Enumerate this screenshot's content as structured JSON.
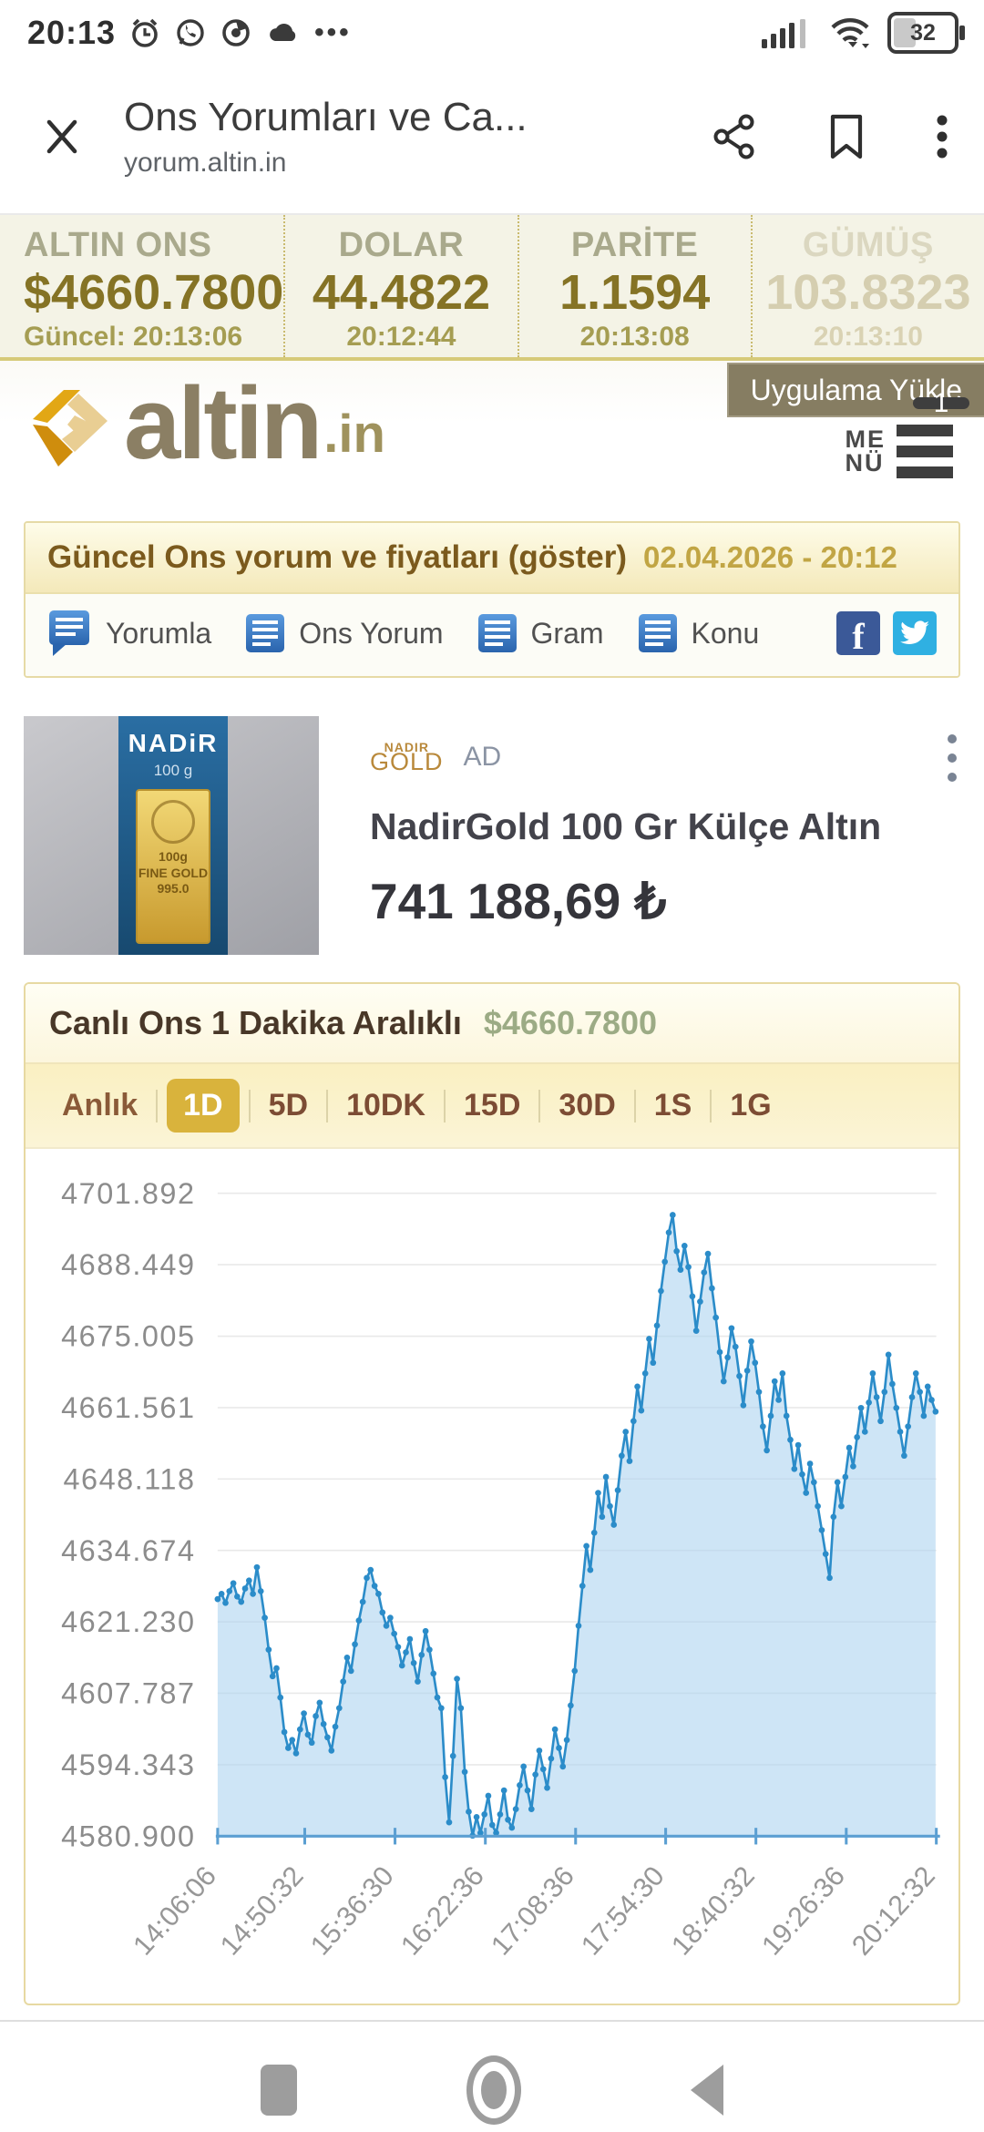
{
  "colors": {
    "accent_gold": "#d9b33c",
    "ticker_value": "#857325",
    "badge_red": "#e0706b",
    "facebook": "#3b5998",
    "twitter": "#2fb0e2",
    "line_blue": "#2b8cc9"
  },
  "status_bar": {
    "time": "20:13",
    "battery": "32"
  },
  "browser": {
    "title": "Ons Yorumları ve Ca...",
    "url": "yorum.altin.in"
  },
  "ticker": {
    "items": [
      {
        "label": "ALTIN ONS",
        "value": "$4660.7800",
        "time": "Güncel: 20:13:06"
      },
      {
        "label": "DOLAR",
        "value": "44.4822",
        "time": "20:12:44"
      },
      {
        "label": "PARİTE",
        "value": "1.1594",
        "time": "20:13:08"
      },
      {
        "label": "GÜMÜŞ",
        "value": "103.8323",
        "time": "20:13:10"
      }
    ]
  },
  "header": {
    "logo_text": "altin",
    "logo_suffix": ".in",
    "install_button": "Uygulama Yükle",
    "menu_line1": "ME",
    "menu_line2": "NÜ",
    "badge": "1"
  },
  "banner": {
    "title": "Güncel Ons yorum ve fiyatları (göster)",
    "date": "02.04.2026 - 20:12",
    "tabs": [
      {
        "label": "Yorumla"
      },
      {
        "label": "Ons Yorum"
      },
      {
        "label": "Gram"
      },
      {
        "label": "Konu"
      }
    ],
    "facebook_letter": "f"
  },
  "ad": {
    "sponsor_top": "NADIR",
    "sponsor_bottom": "GOLD",
    "ad_label": "AD",
    "title": "NadirGold 100 Gr Külçe Altın",
    "price": "741 188,69 ₺",
    "image": {
      "brand": "NADiR",
      "weight": "100 g",
      "bar_line1": "100g",
      "bar_line2": "FINE GOLD",
      "bar_line3": "995.0"
    }
  },
  "chart": {
    "title": "Canlı Ons 1 Dakika Aralıklı",
    "price": "$4660.7800",
    "ranges": [
      "Anlık",
      "1D",
      "5D",
      "10DK",
      "15D",
      "30D",
      "1S",
      "1G"
    ],
    "active_range": "1D"
  },
  "chart_data": {
    "type": "line",
    "area": true,
    "title": "Canlı Ons 1 Dakika Aralıklı",
    "current_value": "$4660.7800",
    "ylim": [
      4580.9,
      4701.892
    ],
    "y_ticks": [
      4701.892,
      4688.449,
      4675.005,
      4661.561,
      4648.118,
      4634.674,
      4621.23,
      4607.787,
      4594.343,
      4580.9
    ],
    "x_tick_labels": [
      "14:06:06",
      "14:50:32",
      "15:36:30",
      "16:22:36",
      "17:08:36",
      "17:54:30",
      "18:40:32",
      "19:26:36",
      "20:12:32"
    ],
    "x_tick_minutes": [
      0,
      44.4,
      90.4,
      136.5,
      182.5,
      228.4,
      274.4,
      320.5,
      366.4
    ],
    "x_total_minutes": 366.4,
    "step_minutes": 2,
    "grid": true,
    "legend": false,
    "line_color": "#2b8cc9",
    "fill_color": "rgba(173,211,240,0.6)",
    "axis_color": "#5b9fd2",
    "grid_color": "#e9e9e9",
    "label_color": "#8c8c8c",
    "values": [
      4625.5,
      4626.5,
      4624.8,
      4627.0,
      4628.5,
      4626.0,
      4625.0,
      4627.5,
      4629.0,
      4626.5,
      4631.5,
      4627.0,
      4622.0,
      4616.0,
      4611.0,
      4612.5,
      4607.0,
      4600.5,
      4597.5,
      4599.0,
      4596.5,
      4601.0,
      4604.0,
      4600.0,
      4598.5,
      4603.5,
      4606.0,
      4602.0,
      4599.5,
      4597.0,
      4601.5,
      4605.0,
      4610.0,
      4614.5,
      4612.0,
      4617.0,
      4621.5,
      4625.0,
      4629.5,
      4631.0,
      4628.0,
      4626.5,
      4623.0,
      4620.5,
      4622.0,
      4619.0,
      4616.5,
      4613.0,
      4615.5,
      4618.0,
      4613.5,
      4610.0,
      4615.0,
      4619.5,
      4616.0,
      4611.5,
      4607.0,
      4605.0,
      4592.0,
      4583.5,
      4596.0,
      4610.5,
      4605.0,
      4593.0,
      4585.5,
      4581.0,
      4584.5,
      4581.5,
      4585.0,
      4588.5,
      4583.0,
      4581.5,
      4585.0,
      4589.5,
      4584.0,
      4582.5,
      4586.0,
      4590.5,
      4594.0,
      4589.5,
      4586.0,
      4592.5,
      4597.0,
      4593.5,
      4590.0,
      4595.5,
      4601.0,
      4597.5,
      4594.0,
      4599.0,
      4605.5,
      4612.0,
      4620.5,
      4628.0,
      4635.5,
      4631.0,
      4638.0,
      4645.5,
      4641.0,
      4648.5,
      4643.0,
      4639.5,
      4646.0,
      4652.5,
      4657.0,
      4651.5,
      4659.0,
      4665.5,
      4661.0,
      4668.0,
      4674.5,
      4670.0,
      4677.0,
      4683.5,
      4689.0,
      4694.5,
      4697.8,
      4691.0,
      4687.5,
      4692.0,
      4688.0,
      4682.5,
      4676.0,
      4681.5,
      4687.0,
      4690.5,
      4684.0,
      4678.5,
      4672.0,
      4666.5,
      4671.0,
      4676.5,
      4673.0,
      4667.5,
      4662.0,
      4668.5,
      4674.0,
      4670.0,
      4664.5,
      4658.0,
      4653.5,
      4660.0,
      4666.5,
      4663.0,
      4668.0,
      4660.0,
      4655.5,
      4650.0,
      4654.5,
      4649.0,
      4645.5,
      4651.0,
      4647.5,
      4643.0,
      4638.5,
      4634.0,
      4629.5,
      4641.0,
      4647.5,
      4643.0,
      4648.5,
      4654.0,
      4650.5,
      4656.0,
      4661.5,
      4657.0,
      4662.5,
      4668.0,
      4663.5,
      4659.0,
      4664.5,
      4671.5,
      4666.0,
      4661.5,
      4657.0,
      4652.5,
      4658.0,
      4663.5,
      4668.0,
      4664.5,
      4660.0,
      4665.5,
      4663.0,
      4660.8
    ]
  }
}
